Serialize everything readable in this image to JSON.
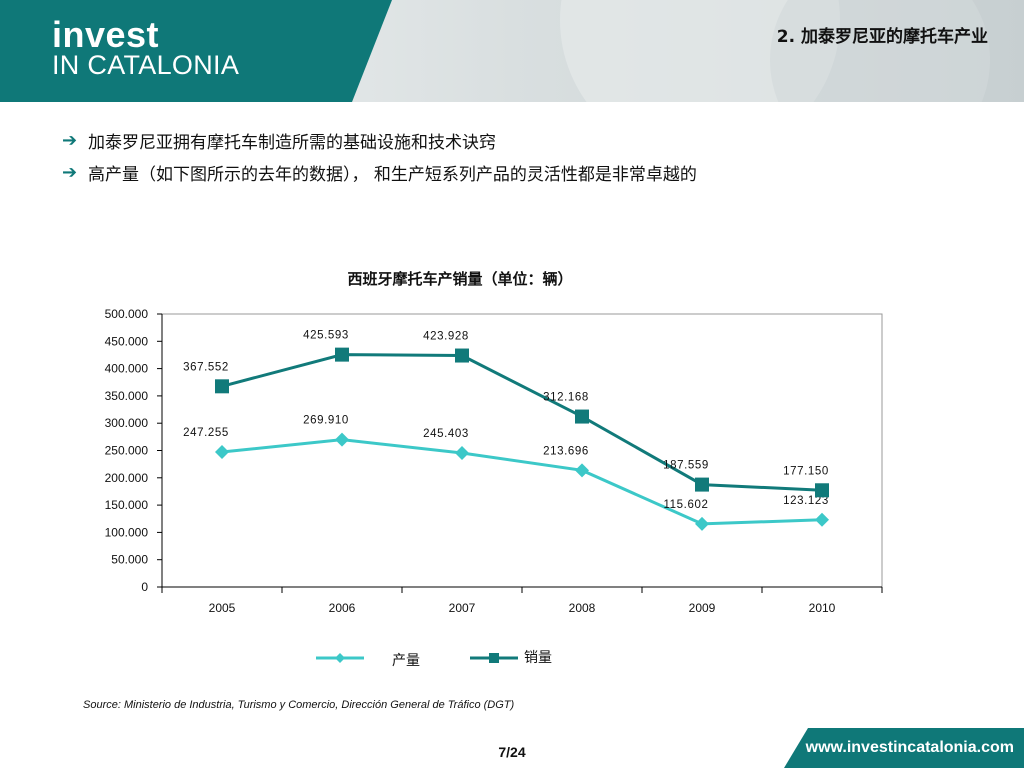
{
  "header": {
    "logo_line1": "invest",
    "logo_line2": "IN CATALONIA",
    "title": "2. 加泰罗尼亚的摩托车产业",
    "accent_color": "#0f7878"
  },
  "bullets": [
    "加泰罗尼亚拥有摩托车制造所需的基础设施和技术诀窍",
    "高产量（如下图所示的去年的数据）， 和生产短系列产品的灵活性都是非常卓越的"
  ],
  "chart_data": {
    "type": "line",
    "title": "西班牙摩托车产销量（单位：辆）",
    "categories": [
      "2005",
      "2006",
      "2007",
      "2008",
      "2009",
      "2010"
    ],
    "ylim": [
      0,
      500000
    ],
    "yticks": [
      "0",
      "50.000",
      "100.000",
      "150.000",
      "200.000",
      "250.000",
      "300.000",
      "350.000",
      "400.000",
      "450.000",
      "500.000"
    ],
    "legend_position": "bottom",
    "series": [
      {
        "name": "产量",
        "marker": "diamond",
        "color": "#3cc8c8",
        "values": [
          247255,
          269910,
          245403,
          213696,
          115602,
          123123
        ],
        "labels": [
          "247.255",
          "269.910",
          "245.403",
          "213.696",
          "115.602",
          "123.123"
        ]
      },
      {
        "name": "销量",
        "marker": "square",
        "color": "#117a7a",
        "values": [
          367552,
          425593,
          423928,
          312168,
          187559,
          177150
        ],
        "labels": [
          "367.552",
          "425.593",
          "423.928",
          "312.168",
          "187.559",
          "177.150"
        ]
      }
    ]
  },
  "source": "Source: Ministerio de Industria, Turismo y Comercio, Dirección General de Tráfico (DGT)",
  "page": "7/24",
  "footer_url": "www.investincatalonia.com"
}
